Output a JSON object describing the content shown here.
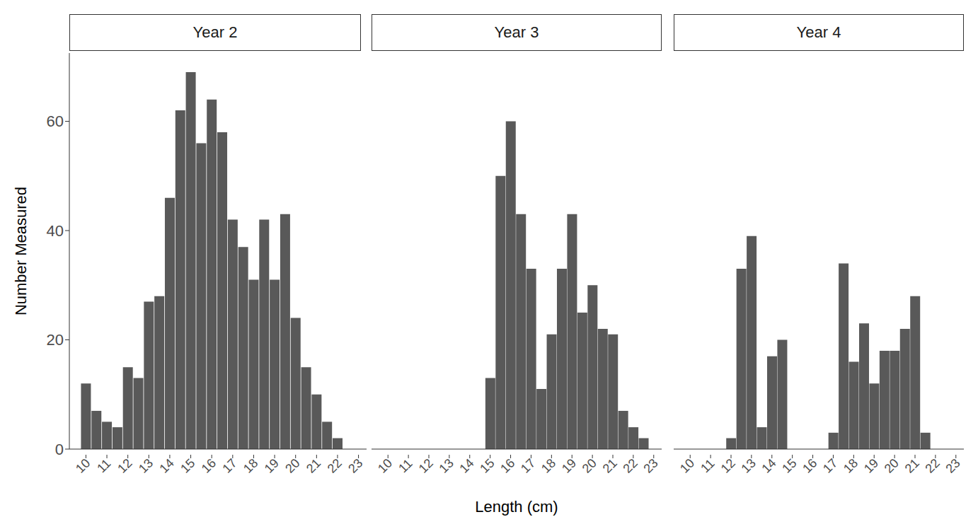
{
  "chart_data": {
    "type": "bar",
    "x_label": "Length (cm)",
    "y_label": "Number Measured",
    "categories": [
      "10",
      null,
      "11",
      null,
      "12",
      null,
      "13",
      null,
      "14",
      null,
      "15",
      null,
      "16",
      null,
      "17",
      null,
      "18",
      null,
      "19",
      null,
      "20",
      null,
      "21",
      null,
      "22",
      null,
      "23"
    ],
    "color": "#595959",
    "ylim": [
      0,
      72.5
    ],
    "yticks": [
      0,
      20,
      40,
      60
    ],
    "series": [
      {
        "name": "Year 2",
        "values": [
          12,
          7,
          5,
          4,
          15,
          13,
          27,
          28,
          46,
          62,
          69,
          56,
          64,
          58,
          42,
          37,
          31,
          42,
          31,
          43,
          24,
          15,
          10,
          5,
          2,
          null,
          null
        ]
      },
      {
        "name": "Year 3",
        "values": [
          null,
          null,
          null,
          null,
          null,
          null,
          null,
          null,
          null,
          null,
          13,
          50,
          60,
          43,
          33,
          11,
          21,
          33,
          43,
          25,
          30,
          22,
          21,
          7,
          4,
          2,
          null
        ]
      },
      {
        "name": "Year 4",
        "values": [
          null,
          null,
          null,
          null,
          2,
          33,
          39,
          4,
          17,
          20,
          null,
          null,
          null,
          null,
          3,
          34,
          16,
          23,
          12,
          18,
          18,
          22,
          28,
          3,
          null,
          null,
          null
        ]
      }
    ]
  }
}
